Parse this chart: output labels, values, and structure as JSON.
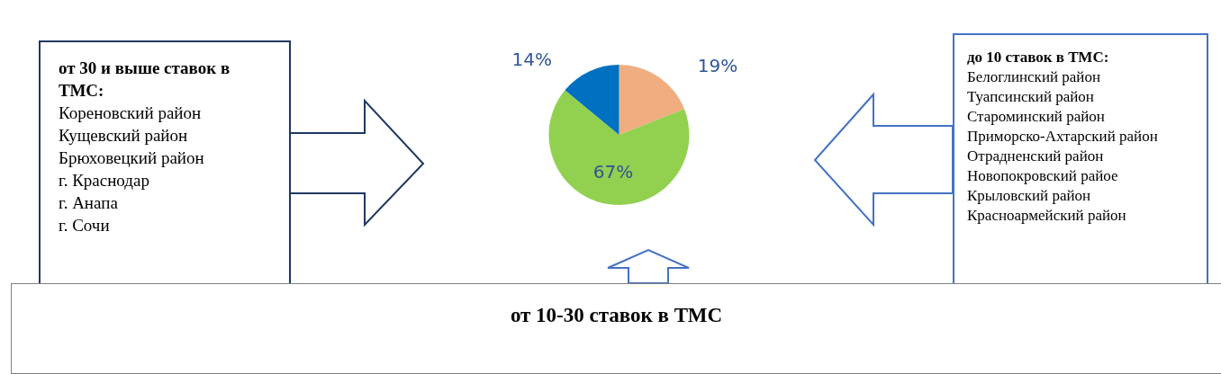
{
  "chart_data": {
    "type": "pie",
    "categories": [
      null,
      null,
      null
    ],
    "values": [
      19,
      67,
      14
    ],
    "colors": [
      "#f0ad7f",
      "#92d050",
      "#0070c0"
    ],
    "value_labels": [
      "19%",
      "67%",
      "14%"
    ],
    "annotations": [
      "от 30 и выше ставок в ТМС:\nКореновский район\nКущевский район\nБрюховецкий район\nг. Краснодар\nг. Анапа\nг. Сочи",
      "до 10 ставок в ТМС:\nБелоглинский район\nТуапсинский район\nСтароминский район\nПриморско-Ахтарский район\nОтрадненский район\nНовопокровский райое\nКрыловский район\nКрасноармейский район",
      "от 10-30 ставок в ТМС"
    ]
  }
}
